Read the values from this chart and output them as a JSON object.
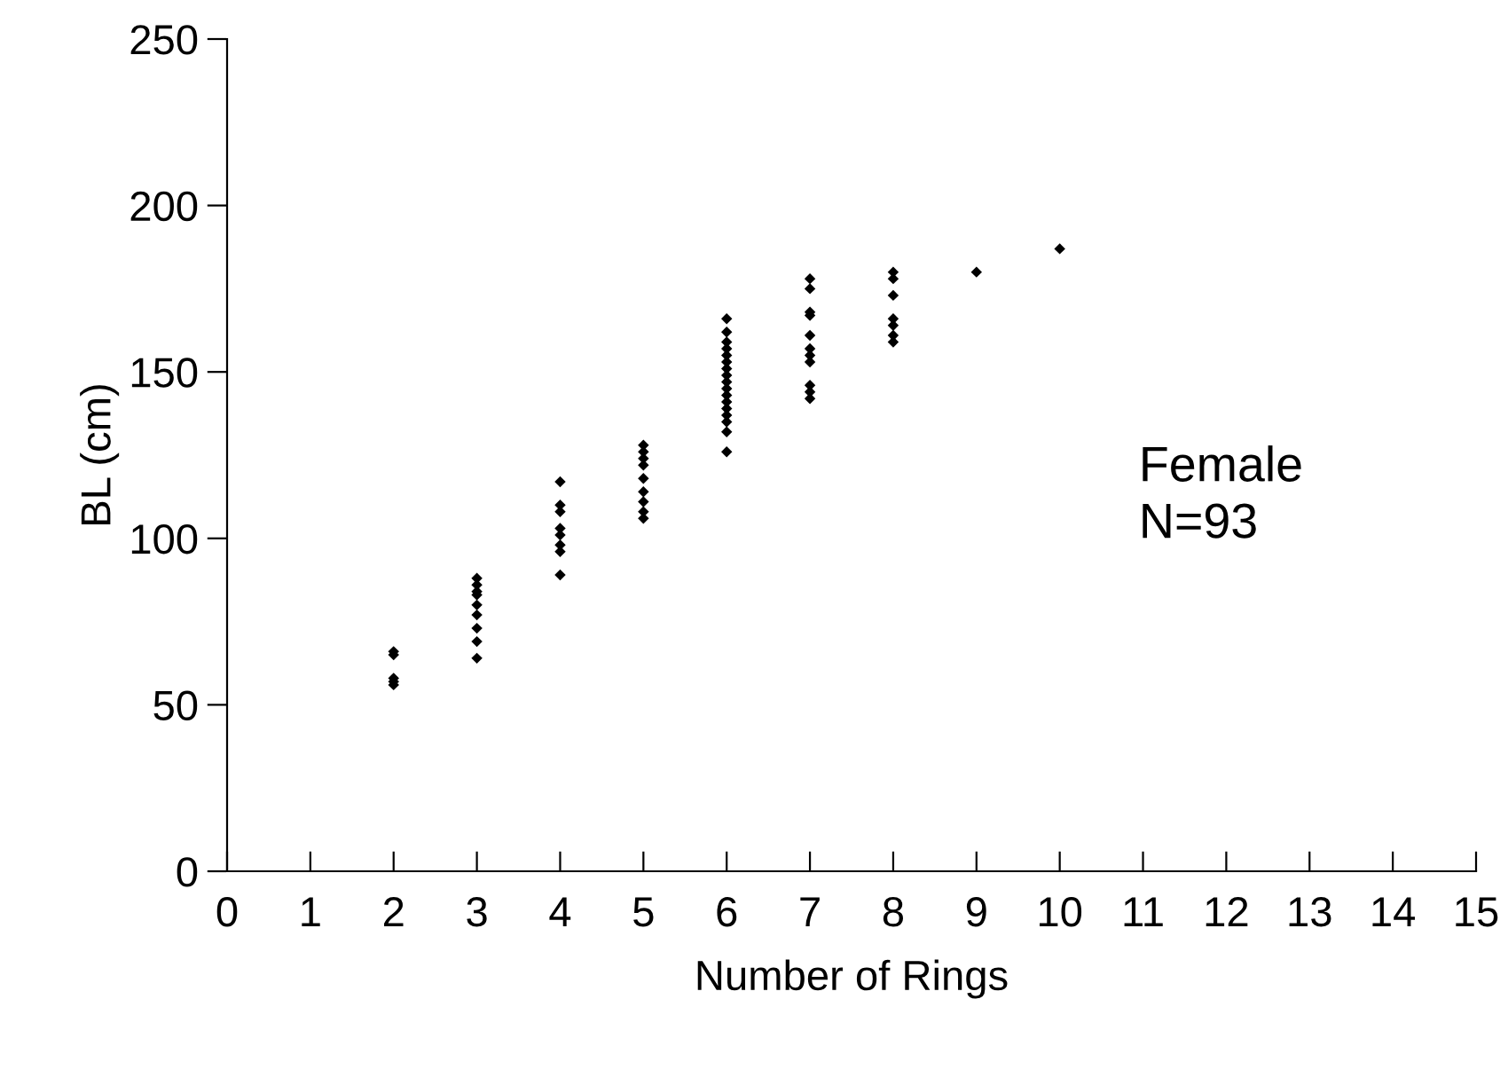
{
  "chart_data": {
    "type": "scatter",
    "xlabel": "Number of Rings",
    "ylabel": "BL (cm)",
    "annotations": [
      "Female\nN=93"
    ],
    "marker": "diamond",
    "xlim": [
      0,
      15
    ],
    "xticks": [
      0,
      1,
      2,
      3,
      4,
      5,
      6,
      7,
      8,
      9,
      10,
      11,
      12,
      13,
      14,
      15
    ],
    "ylim": [
      0,
      250
    ],
    "yticks": [
      0,
      50,
      100,
      150,
      200,
      250
    ],
    "series": [
      {
        "color": "#000000",
        "x": [
          2,
          2,
          2,
          2,
          2,
          3,
          3,
          3,
          3,
          3,
          3,
          3,
          3,
          3,
          4,
          4,
          4,
          4,
          4,
          4,
          4,
          4,
          5,
          5,
          5,
          5,
          5,
          5,
          5,
          5,
          5,
          6,
          6,
          6,
          6,
          6,
          6,
          6,
          6,
          6,
          6,
          6,
          6,
          6,
          6,
          6,
          6,
          6,
          7,
          7,
          7,
          7,
          7,
          7,
          7,
          7,
          7,
          7,
          7,
          8,
          8,
          8,
          8,
          8,
          8,
          8,
          9,
          10
        ],
        "values": [
          66,
          65,
          58,
          57,
          56,
          88,
          86,
          84,
          83,
          80,
          77,
          73,
          69,
          64,
          117,
          110,
          108,
          103,
          101,
          98,
          96,
          89,
          128,
          126,
          124,
          122,
          118,
          114,
          111,
          108,
          106,
          166,
          162,
          159,
          157,
          155,
          153,
          151,
          149,
          147,
          145,
          143,
          141,
          139,
          137,
          135,
          132,
          126,
          178,
          175,
          168,
          167,
          161,
          157,
          155,
          153,
          146,
          144,
          142,
          180,
          178,
          173,
          166,
          164,
          161,
          159,
          180,
          187
        ]
      }
    ]
  }
}
